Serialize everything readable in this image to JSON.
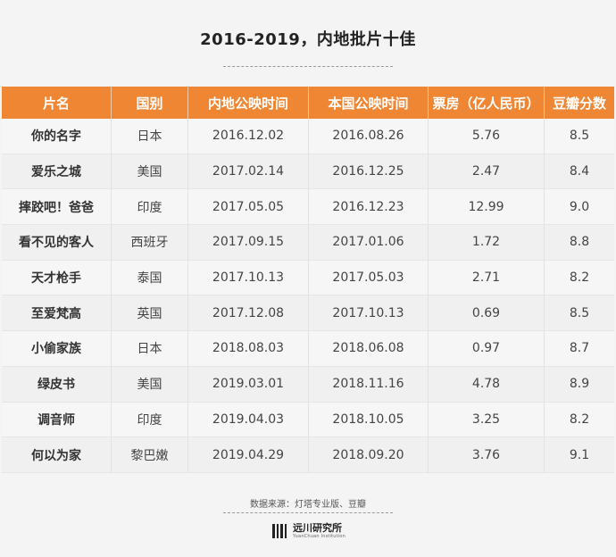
{
  "title": "2016-2019，内地批片十佳",
  "table": {
    "headers": [
      "片名",
      "国别",
      "内地公映时间",
      "本国公映时间",
      "票房（亿人民币）",
      "豆瓣分数"
    ],
    "rows": [
      [
        "你的名字",
        "日本",
        "2016.12.02",
        "2016.08.26",
        "5.76",
        "8.5"
      ],
      [
        "爱乐之城",
        "美国",
        "2017.02.14",
        "2016.12.25",
        "2.47",
        "8.4"
      ],
      [
        "摔跤吧！爸爸",
        "印度",
        "2017.05.05",
        "2016.12.23",
        "12.99",
        "9.0"
      ],
      [
        "看不见的客人",
        "西班牙",
        "2017.09.15",
        "2017.01.06",
        "1.72",
        "8.8"
      ],
      [
        "天才枪手",
        "泰国",
        "2017.10.13",
        "2017.05.03",
        "2.71",
        "8.2"
      ],
      [
        "至爱梵高",
        "英国",
        "2017.12.08",
        "2017.10.13",
        "0.69",
        "8.5"
      ],
      [
        "小偷家族",
        "日本",
        "2018.08.03",
        "2018.06.08",
        "0.97",
        "8.7"
      ],
      [
        "绿皮书",
        "美国",
        "2019.03.01",
        "2018.11.16",
        "4.78",
        "8.9"
      ],
      [
        "调音师",
        "印度",
        "2019.04.03",
        "2018.10.05",
        "3.25",
        "8.2"
      ],
      [
        "何以为家",
        "黎巴嫩",
        "2019.04.29",
        "2018.09.20",
        "3.76",
        "9.1"
      ]
    ]
  },
  "source": "数据来源：灯塔专业版、豆瓣",
  "brand": {
    "name_cn": "远川研究所",
    "name_en": "YuanChuan Institution"
  },
  "colors": {
    "header_bg": "#ef8633",
    "header_text": "#ffffff",
    "page_bg": "#f4f4f4"
  }
}
